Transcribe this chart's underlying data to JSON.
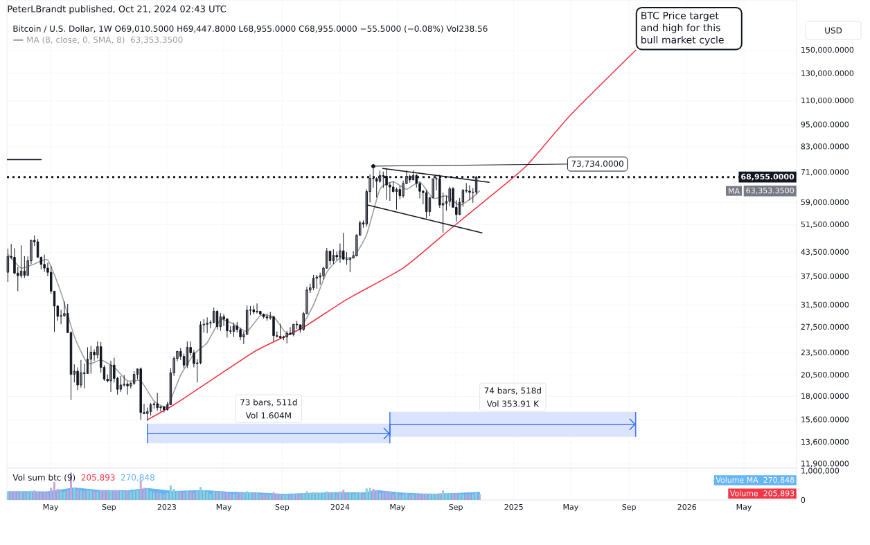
{
  "chart_data": [
    {
      "type": "candlestick",
      "title": "Bitcoin / U.S. Dollar, 1W O69,010.5000 H69,447.8000 L68,955.0000 C68,955.0000 −55.5000 (−0.08%) Vol238.56",
      "color": "#131722",
      "x": [
        "2022-01-31",
        "2022-02-07",
        "2022-02-14",
        "2022-02-21",
        "2022-02-28",
        "2022-03-07",
        "2022-03-14",
        "2022-03-21",
        "2022-03-28",
        "2022-04-04",
        "2022-04-11",
        "2022-04-18",
        "2022-04-25",
        "2022-05-02",
        "2022-05-09",
        "2022-05-16",
        "2022-05-23",
        "2022-05-30",
        "2022-06-06",
        "2022-06-13",
        "2022-06-20",
        "2022-06-27",
        "2022-07-04",
        "2022-07-11",
        "2022-07-18",
        "2022-07-25",
        "2022-08-01",
        "2022-08-08",
        "2022-08-15",
        "2022-08-22",
        "2022-08-29",
        "2022-09-05",
        "2022-09-12",
        "2022-09-19",
        "2022-09-26",
        "2022-10-03",
        "2022-10-10",
        "2022-10-17",
        "2022-10-24",
        "2022-10-31",
        "2022-11-07",
        "2022-11-14",
        "2022-11-21",
        "2022-11-28",
        "2022-12-05",
        "2022-12-12",
        "2022-12-19",
        "2022-12-26",
        "2023-01-02",
        "2023-01-09",
        "2023-01-16",
        "2023-01-23",
        "2023-01-30",
        "2023-02-06",
        "2023-02-13",
        "2023-02-20",
        "2023-02-27",
        "2023-03-06",
        "2023-03-13",
        "2023-03-20",
        "2023-03-27",
        "2023-04-03",
        "2023-04-10",
        "2023-04-17",
        "2023-04-24",
        "2023-05-01",
        "2023-05-08",
        "2023-05-15",
        "2023-05-22",
        "2023-05-29",
        "2023-06-05",
        "2023-06-12",
        "2023-06-19",
        "2023-06-26",
        "2023-07-03",
        "2023-07-10",
        "2023-07-17",
        "2023-07-24",
        "2023-07-31",
        "2023-08-07",
        "2023-08-14",
        "2023-08-21",
        "2023-08-28",
        "2023-09-04",
        "2023-09-11",
        "2023-09-18",
        "2023-09-25",
        "2023-10-02",
        "2023-10-09",
        "2023-10-16",
        "2023-10-23",
        "2023-10-30",
        "2023-11-06",
        "2023-11-13",
        "2023-11-20",
        "2023-11-27",
        "2023-12-04",
        "2023-12-11",
        "2023-12-18",
        "2023-12-25",
        "2024-01-01",
        "2024-01-08",
        "2024-01-15",
        "2024-01-22",
        "2024-01-29",
        "2024-02-05",
        "2024-02-12",
        "2024-02-19",
        "2024-02-26",
        "2024-03-04",
        "2024-03-11",
        "2024-03-18",
        "2024-03-25",
        "2024-04-01",
        "2024-04-08",
        "2024-04-15",
        "2024-04-22",
        "2024-04-29",
        "2024-05-06",
        "2024-05-13",
        "2024-05-20",
        "2024-05-27",
        "2024-06-03",
        "2024-06-10",
        "2024-06-17",
        "2024-06-24",
        "2024-07-01",
        "2024-07-08",
        "2024-07-15",
        "2024-07-22",
        "2024-07-29",
        "2024-08-05",
        "2024-08-12",
        "2024-08-19",
        "2024-08-26",
        "2024-09-02",
        "2024-09-09",
        "2024-09-16",
        "2024-09-23",
        "2024-09-30",
        "2024-10-07",
        "2024-10-14",
        "2024-10-21"
      ],
      "ohlc": [
        [
          38500,
          44500,
          36300,
          42400
        ],
        [
          42400,
          45800,
          41700,
          42200
        ],
        [
          42200,
          44600,
          38000,
          38300
        ],
        [
          38300,
          39800,
          34300,
          37700
        ],
        [
          37700,
          45400,
          37200,
          38800
        ],
        [
          38800,
          42500,
          37200,
          37800
        ],
        [
          37800,
          42400,
          37600,
          41300
        ],
        [
          41300,
          46900,
          40500,
          46800
        ],
        [
          46800,
          48200,
          45200,
          46400
        ],
        [
          46400,
          47200,
          42100,
          42200
        ],
        [
          42200,
          42400,
          39200,
          40400
        ],
        [
          40400,
          42900,
          38600,
          39500
        ],
        [
          39500,
          40800,
          37600,
          38500
        ],
        [
          38500,
          40000,
          33700,
          34300
        ],
        [
          34300,
          34300,
          26700,
          31300
        ],
        [
          31300,
          31500,
          28600,
          29400
        ],
        [
          29400,
          30600,
          28000,
          29500
        ],
        [
          29500,
          32200,
          29300,
          29900
        ],
        [
          29900,
          31700,
          26600,
          26600
        ],
        [
          26600,
          26800,
          17600,
          20600
        ],
        [
          20600,
          21900,
          19600,
          21000
        ],
        [
          21000,
          21500,
          18700,
          19300
        ],
        [
          19300,
          22500,
          19000,
          20800
        ],
        [
          20800,
          22000,
          18900,
          20700
        ],
        [
          20700,
          24300,
          20700,
          22600
        ],
        [
          22600,
          24500,
          20700,
          23600
        ],
        [
          23600,
          24000,
          22400,
          23200
        ],
        [
          23200,
          25200,
          22700,
          24400
        ],
        [
          24400,
          25100,
          20800,
          21500
        ],
        [
          21500,
          21800,
          19800,
          20000
        ],
        [
          20000,
          20600,
          19600,
          19800
        ],
        [
          19800,
          22400,
          18500,
          21800
        ],
        [
          21800,
          22800,
          19600,
          20100
        ],
        [
          20100,
          20300,
          18200,
          18800
        ],
        [
          18800,
          20400,
          18500,
          19300
        ],
        [
          19300,
          20500,
          19100,
          19400
        ],
        [
          19400,
          19700,
          18200,
          19200
        ],
        [
          19200,
          19700,
          18900,
          19500
        ],
        [
          19500,
          21000,
          19300,
          20600
        ],
        [
          20600,
          21300,
          20000,
          21300
        ],
        [
          21300,
          21500,
          15600,
          16300
        ],
        [
          16300,
          17200,
          16200,
          16200
        ],
        [
          16200,
          16800,
          15500,
          16400
        ],
        [
          16400,
          17300,
          16000,
          17100
        ],
        [
          17100,
          17400,
          16700,
          17200
        ],
        [
          17200,
          18400,
          16500,
          16800
        ],
        [
          16800,
          16900,
          16400,
          16900
        ],
        [
          16900,
          16900,
          16300,
          16600
        ],
        [
          16600,
          17400,
          16500,
          17100
        ],
        [
          17100,
          21400,
          17100,
          20800
        ],
        [
          20800,
          23000,
          20400,
          22700
        ],
        [
          22700,
          23800,
          22300,
          23700
        ],
        [
          23700,
          24200,
          22500,
          23000
        ],
        [
          23000,
          23400,
          21400,
          21800
        ],
        [
          21800,
          25200,
          21400,
          24300
        ],
        [
          24300,
          25200,
          23100,
          23500
        ],
        [
          23500,
          23900,
          21500,
          22000
        ],
        [
          22000,
          22600,
          19600,
          22100
        ],
        [
          22100,
          28500,
          21900,
          27900
        ],
        [
          27900,
          28900,
          26600,
          28000
        ],
        [
          28000,
          29200,
          26500,
          28200
        ],
        [
          28200,
          28700,
          27300,
          28300
        ],
        [
          28300,
          31000,
          28200,
          30300
        ],
        [
          30300,
          30500,
          27100,
          27600
        ],
        [
          27600,
          30000,
          26900,
          29300
        ],
        [
          29300,
          29800,
          27700,
          28900
        ],
        [
          28900,
          29100,
          25800,
          26900
        ],
        [
          26900,
          27700,
          26400,
          26800
        ],
        [
          26800,
          28300,
          25900,
          27700
        ],
        [
          27700,
          28400,
          26600,
          27100
        ],
        [
          27100,
          27400,
          25400,
          25900
        ],
        [
          25900,
          26800,
          24800,
          26300
        ],
        [
          26300,
          31400,
          26300,
          30500
        ],
        [
          30500,
          31300,
          29600,
          30600
        ],
        [
          30600,
          31400,
          29800,
          30200
        ],
        [
          30200,
          31800,
          29900,
          30300
        ],
        [
          30300,
          30400,
          29600,
          29800
        ],
        [
          29800,
          29900,
          29000,
          29300
        ],
        [
          29300,
          29900,
          28600,
          29100
        ],
        [
          29100,
          30200,
          28800,
          29300
        ],
        [
          29300,
          29500,
          25200,
          26100
        ],
        [
          26100,
          26800,
          25800,
          26000
        ],
        [
          26000,
          28100,
          25600,
          25800
        ],
        [
          25800,
          26100,
          25400,
          25900
        ],
        [
          25900,
          26900,
          24900,
          26500
        ],
        [
          26500,
          27500,
          26200,
          26300
        ],
        [
          26300,
          28000,
          26000,
          28000
        ],
        [
          28000,
          28600,
          27200,
          27900
        ],
        [
          27900,
          28000,
          26600,
          27100
        ],
        [
          27100,
          30200,
          26900,
          29900
        ],
        [
          29900,
          35200,
          29800,
          34500
        ],
        [
          34500,
          35900,
          33900,
          35000
        ],
        [
          35000,
          37900,
          34500,
          37100
        ],
        [
          37100,
          37900,
          34800,
          37400
        ],
        [
          37400,
          38400,
          35700,
          37700
        ],
        [
          37700,
          39800,
          36800,
          39500
        ],
        [
          39500,
          44700,
          39300,
          43800
        ],
        [
          43800,
          43900,
          40200,
          41300
        ],
        [
          41300,
          44300,
          40500,
          42700
        ],
        [
          42700,
          43700,
          41400,
          42300
        ],
        [
          42300,
          45900,
          40800,
          43900
        ],
        [
          43900,
          49000,
          41500,
          41700
        ],
        [
          41700,
          43600,
          40300,
          41600
        ],
        [
          41600,
          42200,
          38500,
          42000
        ],
        [
          42000,
          43800,
          41900,
          42600
        ],
        [
          42600,
          48600,
          42400,
          48300
        ],
        [
          48300,
          52800,
          48100,
          52100
        ],
        [
          52100,
          52900,
          50600,
          51700
        ],
        [
          51700,
          64000,
          50900,
          63100
        ],
        [
          63100,
          70100,
          59000,
          68400
        ],
        [
          68400,
          73734,
          64600,
          68300
        ],
        [
          68300,
          68900,
          60800,
          67200
        ],
        [
          67200,
          71800,
          66500,
          69600
        ],
        [
          69600,
          71300,
          64500,
          69300
        ],
        [
          69300,
          72800,
          60000,
          65700
        ],
        [
          65700,
          66800,
          59600,
          64900
        ],
        [
          64900,
          67200,
          62800,
          63100
        ],
        [
          63100,
          64700,
          56500,
          63900
        ],
        [
          63900,
          65500,
          60200,
          61500
        ],
        [
          61500,
          67500,
          60700,
          66300
        ],
        [
          66300,
          71900,
          66000,
          69300
        ],
        [
          69300,
          70000,
          66700,
          67800
        ],
        [
          67800,
          71900,
          67600,
          69600
        ],
        [
          69600,
          70300,
          64600,
          66300
        ],
        [
          66300,
          66900,
          60500,
          63200
        ],
        [
          63200,
          63800,
          58400,
          62700
        ],
        [
          62700,
          63800,
          53500,
          55800
        ],
        [
          55800,
          61000,
          54300,
          60800
        ],
        [
          60800,
          68400,
          60700,
          68200
        ],
        [
          68200,
          69000,
          63500,
          68300
        ],
        [
          68300,
          70000,
          57100,
          58100
        ],
        [
          58100,
          62700,
          49000,
          58700
        ],
        [
          58700,
          61500,
          56100,
          59400
        ],
        [
          59400,
          65000,
          57800,
          64200
        ],
        [
          64200,
          64900,
          57200,
          57300
        ],
        [
          57300,
          59800,
          52500,
          54800
        ],
        [
          54800,
          60700,
          54600,
          59100
        ],
        [
          59100,
          64100,
          57500,
          63600
        ],
        [
          63600,
          66500,
          62600,
          63300
        ],
        [
          63300,
          65600,
          59800,
          62800
        ],
        [
          62800,
          64500,
          58900,
          62900
        ],
        [
          62900,
          69400,
          62000,
          69010.5
        ],
        [
          69010.5,
          69447.8,
          68955,
          68955
        ]
      ],
      "series": [
        {
          "name": "MA (8, close, 0, SMA, 8)",
          "type": "line",
          "color": "#9e9e9e",
          "x": [
            "2022-01-31",
            "2022-02-28",
            "2022-03-28",
            "2022-04-25",
            "2022-05-23",
            "2022-06-20",
            "2022-07-18",
            "2022-08-15",
            "2022-09-12",
            "2022-10-10",
            "2022-11-07",
            "2022-12-05",
            "2023-01-02",
            "2023-01-30",
            "2023-02-27",
            "2023-03-27",
            "2023-04-24",
            "2023-05-22",
            "2023-06-19",
            "2023-07-17",
            "2023-08-14",
            "2023-09-11",
            "2023-10-09",
            "2023-11-06",
            "2023-12-04",
            "2024-01-01",
            "2024-01-29",
            "2024-02-26",
            "2024-03-25",
            "2024-04-22",
            "2024-05-20",
            "2024-06-17",
            "2024-07-15",
            "2024-08-12",
            "2024-09-09",
            "2024-10-07",
            "2024-10-21"
          ],
          "values": [
            43000,
            39500,
            40500,
            41500,
            34000,
            26000,
            22000,
            22500,
            21500,
            19800,
            19800,
            17500,
            16900,
            20500,
            23300,
            25000,
            28800,
            28000,
            26800,
            29500,
            29300,
            26400,
            27300,
            31500,
            38500,
            42000,
            42200,
            48500,
            64000,
            67000,
            64000,
            67000,
            60500,
            61500,
            58000,
            61000,
            63353.35
          ]
        },
        {
          "type": "line",
          "color": "#f23645",
          "x": [
            "2022-11-21",
            "2023-01-16",
            "2023-04-10",
            "2023-07-10",
            "2023-10-16",
            "2024-01-15",
            "2024-05-13",
            "2024-08-19",
            "2024-11-01",
            "2025-01-27",
            "2025-05-01",
            "2025-09-15"
          ],
          "values": [
            15600,
            17100,
            20100,
            23900,
            27500,
            32600,
            39500,
            50000,
            59600,
            73700,
            101000,
            150000
          ]
        },
        {
          "type": "line",
          "color": "#131722",
          "x": [
            "2024-03-31",
            "2024-11-10"
          ],
          "values": [
            72700,
            66800
          ]
        },
        {
          "type": "line",
          "color": "#131722",
          "x": [
            "2024-02-28",
            "2024-10-26"
          ],
          "values": [
            58100,
            49000
          ]
        },
        {
          "type": "line",
          "color": "#131722",
          "x": [
            "2022-01-29",
            "2022-04-11"
          ],
          "values": [
            76800,
            76800
          ]
        }
      ],
      "ref_lines": [
        {
          "axis": "y",
          "value": 68955,
          "label": "68,955.0000",
          "color": "#131722",
          "line_style": "dotted"
        }
      ],
      "bands": [
        {
          "axis": "x",
          "from": "2022-11-21",
          "to": "2024-04-15",
          "label": "73 bars, 511d",
          "color": "#dbe4ff"
        },
        {
          "axis": "x",
          "from": "2024-04-15",
          "to": "2025-09-15",
          "label": "74 bars, 518d",
          "color": "#dbe4ff"
        }
      ],
      "annotations": [
        "PeterLBrandt published, Oct 21, 2024 02:43 UTC",
        "63,353.3500",
        {
          "text": "73,734.0000",
          "x": "2024-03-11",
          "y": 73734
        },
        {
          "text": "BTC Price target and high for this bull market cycle",
          "x": "2025-09-15",
          "y": 150000
        },
        "USD",
        "MA",
        "63,353.3500",
        "Vol 1.604M",
        "Vol 353.91 K"
      ],
      "log": "y",
      "grid": true,
      "tick_labels": "y",
      "xlim": [
        "2022-01-29",
        "2026-08-20"
      ],
      "ylim": [
        11600,
        204000
      ],
      "xticks": [
        {
          "value": "2022-05-01",
          "label": null
        },
        {
          "value": "2022-09-01",
          "label": null
        },
        {
          "value": "2023-01-01",
          "label": null
        },
        {
          "value": "2023-05-01",
          "label": null
        },
        {
          "value": "2023-09-01",
          "label": null
        },
        {
          "value": "2024-01-01",
          "label": null
        },
        {
          "value": "2024-05-01",
          "label": null
        },
        {
          "value": "2024-09-01",
          "label": null
        },
        {
          "value": "2025-01-01",
          "label": null
        },
        {
          "value": "2025-05-01",
          "label": null
        },
        {
          "value": "2025-09-01",
          "label": null
        },
        {
          "value": "2026-01-01",
          "label": null
        },
        {
          "value": "2026-05-01",
          "label": null
        }
      ],
      "yticks": [
        {
          "value": 11900,
          "label": "11,900.0000"
        },
        {
          "value": 13600,
          "label": "13,600.0000"
        },
        {
          "value": 15600,
          "label": "15,600.0000"
        },
        {
          "value": 18000,
          "label": "18,000.0000"
        },
        {
          "value": 20500,
          "label": "20,500.0000"
        },
        {
          "value": 23500,
          "label": "23,500.0000"
        },
        {
          "value": 27500,
          "label": "27,500.0000"
        },
        {
          "value": 31500,
          "label": "31,500.0000"
        },
        {
          "value": 37500,
          "label": "37,500.0000"
        },
        {
          "value": 43500,
          "label": "43,500.0000"
        },
        {
          "value": 51500,
          "label": "51,500.0000"
        },
        {
          "value": 59000,
          "label": "59,000.0000"
        },
        {
          "value": 71000,
          "label": "71,000.0000"
        },
        {
          "value": 83000,
          "label": "83,000.0000"
        },
        {
          "value": 95000,
          "label": "95,000.0000"
        },
        {
          "value": 110000,
          "label": "110,000.0000"
        },
        {
          "value": 130000,
          "label": "130,000.0000"
        },
        {
          "value": 150000,
          "label": "150,000.0000"
        }
      ]
    },
    {
      "type": "bar",
      "title": "Vol sum btc (9)",
      "x": [
        "2022-01-31",
        "2022-02-07",
        "2022-02-14",
        "2022-02-21",
        "2022-02-28",
        "2022-03-07",
        "2022-03-14",
        "2022-03-21",
        "2022-03-28",
        "2022-04-04",
        "2022-04-11",
        "2022-04-18",
        "2022-04-25",
        "2022-05-02",
        "2022-05-09",
        "2022-05-16",
        "2022-05-23",
        "2022-05-30",
        "2022-06-06",
        "2022-06-13",
        "2022-06-20",
        "2022-06-27",
        "2022-07-04",
        "2022-07-11",
        "2022-07-18",
        "2022-07-25",
        "2022-08-01",
        "2022-08-08",
        "2022-08-15",
        "2022-08-22",
        "2022-08-29",
        "2022-09-05",
        "2022-09-12",
        "2022-09-19",
        "2022-09-26",
        "2022-10-03",
        "2022-10-10",
        "2022-10-17",
        "2022-10-24",
        "2022-10-31",
        "2022-11-07",
        "2022-11-14",
        "2022-11-21",
        "2022-11-28",
        "2022-12-05",
        "2022-12-12",
        "2022-12-19",
        "2022-12-26",
        "2023-01-02",
        "2023-01-09",
        "2023-01-16",
        "2023-01-23",
        "2023-01-30",
        "2023-02-06",
        "2023-02-13",
        "2023-02-20",
        "2023-02-27",
        "2023-03-06",
        "2023-03-13",
        "2023-03-20",
        "2023-03-27",
        "2023-04-03",
        "2023-04-10",
        "2023-04-17",
        "2023-04-24",
        "2023-05-01",
        "2023-05-08",
        "2023-05-15",
        "2023-05-22",
        "2023-05-29",
        "2023-06-05",
        "2023-06-12",
        "2023-06-19",
        "2023-06-26",
        "2023-07-03",
        "2023-07-10",
        "2023-07-17",
        "2023-07-24",
        "2023-07-31",
        "2023-08-07",
        "2023-08-14",
        "2023-08-21",
        "2023-08-28",
        "2023-09-04",
        "2023-09-11",
        "2023-09-18",
        "2023-09-25",
        "2023-10-02",
        "2023-10-09",
        "2023-10-16",
        "2023-10-23",
        "2023-10-30",
        "2023-11-06",
        "2023-11-13",
        "2023-11-20",
        "2023-11-27",
        "2023-12-04",
        "2023-12-11",
        "2023-12-18",
        "2023-12-25",
        "2024-01-01",
        "2024-01-08",
        "2024-01-15",
        "2024-01-22",
        "2024-01-29",
        "2024-02-05",
        "2024-02-12",
        "2024-02-19",
        "2024-02-26",
        "2024-03-04",
        "2024-03-11",
        "2024-03-18",
        "2024-03-25",
        "2024-04-01",
        "2024-04-08",
        "2024-04-15",
        "2024-04-22",
        "2024-04-29",
        "2024-05-06",
        "2024-05-13",
        "2024-05-20",
        "2024-05-27",
        "2024-06-03",
        "2024-06-10",
        "2024-06-17",
        "2024-06-24",
        "2024-07-01",
        "2024-07-08",
        "2024-07-15",
        "2024-07-22",
        "2024-07-29",
        "2024-08-05",
        "2024-08-12",
        "2024-08-19",
        "2024-08-26",
        "2024-09-02",
        "2024-09-09",
        "2024-09-16",
        "2024-09-23",
        "2024-09-30",
        "2024-10-07",
        "2024-10-14",
        "2024-10-21"
      ],
      "series": [
        {
          "name": "Volume",
          "type": "bar",
          "color": "#f23645",
          "values": [
            290000,
            300000,
            280000,
            310000,
            300000,
            270000,
            260000,
            320000,
            330000,
            280000,
            260000,
            270000,
            250000,
            420000,
            625000,
            380000,
            300000,
            290000,
            330000,
            950000,
            420000,
            360000,
            330000,
            300000,
            320000,
            340000,
            300000,
            290000,
            340000,
            330000,
            310000,
            330000,
            350000,
            340000,
            310000,
            300000,
            330000,
            290000,
            320000,
            340000,
            675000,
            420000,
            380000,
            300000,
            260000,
            250000,
            230000,
            200000,
            240000,
            500000,
            380000,
            300000,
            280000,
            260000,
            320000,
            290000,
            260000,
            300000,
            450000,
            330000,
            280000,
            220000,
            300000,
            290000,
            280000,
            260000,
            270000,
            220000,
            210000,
            220000,
            260000,
            250000,
            300000,
            260000,
            230000,
            240000,
            200000,
            180000,
            190000,
            180000,
            260000,
            200000,
            210000,
            170000,
            190000,
            180000,
            190000,
            200000,
            180000,
            220000,
            300000,
            260000,
            280000,
            270000,
            240000,
            230000,
            300000,
            270000,
            240000,
            220000,
            300000,
            350000,
            220000,
            240000,
            200000,
            240000,
            260000,
            200000,
            400000,
            420000,
            380000,
            330000,
            240000,
            260000,
            280000,
            260000,
            200000,
            250000,
            190000,
            200000,
            230000,
            180000,
            190000,
            190000,
            180000,
            200000,
            230000,
            230000,
            220000,
            200000,
            230000,
            330000,
            220000,
            210000,
            230000,
            220000,
            210000,
            200000,
            190000,
            200000,
            200000,
            240000,
            205893
          ],
          "colors": [
            "#8fcfd6",
            "#c9a6d4",
            "#c9a6d4",
            "#c9a6d4",
            "#8fcfd6",
            "#c9a6d4",
            "#8fcfd6",
            "#8fcfd6",
            "#c9a6d4",
            "#c9a6d4",
            "#c9a6d4",
            "#c9a6d4",
            "#c9a6d4",
            "#c9a6d4",
            "#c9a6d4",
            "#c9a6d4",
            "#8fcfd6",
            "#8fcfd6",
            "#c9a6d4",
            "#c9a6d4",
            "#8fcfd6",
            "#c9a6d4",
            "#8fcfd6",
            "#c9a6d4",
            "#8fcfd6",
            "#8fcfd6",
            "#c9a6d4",
            "#8fcfd6",
            "#c9a6d4",
            "#c9a6d4",
            "#c9a6d4",
            "#8fcfd6",
            "#c9a6d4",
            "#c9a6d4",
            "#8fcfd6",
            "#8fcfd6",
            "#c9a6d4",
            "#8fcfd6",
            "#8fcfd6",
            "#8fcfd6",
            "#c9a6d4",
            "#c9a6d4",
            "#8fcfd6",
            "#8fcfd6",
            "#8fcfd6",
            "#c9a6d4",
            "#8fcfd6",
            "#c9a6d4",
            "#8fcfd6",
            "#8fcfd6",
            "#8fcfd6",
            "#8fcfd6",
            "#c9a6d4",
            "#c9a6d4",
            "#8fcfd6",
            "#c9a6d4",
            "#c9a6d4",
            "#8fcfd6",
            "#8fcfd6",
            "#8fcfd6",
            "#8fcfd6",
            "#8fcfd6",
            "#8fcfd6",
            "#c9a6d4",
            "#8fcfd6",
            "#c9a6d4",
            "#c9a6d4",
            "#c9a6d4",
            "#8fcfd6",
            "#c9a6d4",
            "#c9a6d4",
            "#8fcfd6",
            "#8fcfd6",
            "#8fcfd6",
            "#c9a6d4",
            "#8fcfd6",
            "#c9a6d4",
            "#c9a6d4",
            "#c9a6d4",
            "#8fcfd6",
            "#c9a6d4",
            "#c9a6d4",
            "#c9a6d4",
            "#8fcfd6",
            "#8fcfd6",
            "#c9a6d4",
            "#8fcfd6",
            "#c9a6d4",
            "#c9a6d4",
            "#8fcfd6",
            "#8fcfd6",
            "#8fcfd6",
            "#8fcfd6",
            "#8fcfd6",
            "#8fcfd6",
            "#8fcfd6",
            "#8fcfd6",
            "#c9a6d4",
            "#8fcfd6",
            "#c9a6d4",
            "#8fcfd6",
            "#c9a6d4",
            "#c9a6d4",
            "#8fcfd6",
            "#8fcfd6",
            "#8fcfd6",
            "#8fcfd6",
            "#c9a6d4",
            "#8fcfd6",
            "#8fcfd6",
            "#c9a6d4",
            "#c9a6d4",
            "#8fcfd6",
            "#c9a6d4",
            "#c9a6d4",
            "#c9a6d4",
            "#c9a6d4",
            "#8fcfd6",
            "#c9a6d4",
            "#8fcfd6",
            "#8fcfd6",
            "#c9a6d4",
            "#8fcfd6",
            "#c9a6d4",
            "#c9a6d4",
            "#c9a6d4",
            "#c9a6d4",
            "#8fcfd6",
            "#8fcfd6",
            "#8fcfd6",
            "#c9a6d4",
            "#8fcfd6",
            "#8fcfd6",
            "#8fcfd6",
            "#c9a6d4",
            "#c9a6d4",
            "#8fcfd6",
            "#8fcfd6",
            "#c9a6d4",
            "#c9a6d4",
            "#8fcfd6",
            "#8fcfd6",
            "#c9a6d4"
          ]
        },
        {
          "name": "Volume MA",
          "type": "area",
          "color": "#64b5f6",
          "x": [
            "2022-01-31",
            "2022-04-25",
            "2022-06-20",
            "2022-08-15",
            "2022-10-10",
            "2022-11-21",
            "2023-01-16",
            "2023-03-20",
            "2023-05-15",
            "2023-07-10",
            "2023-09-04",
            "2023-10-30",
            "2023-12-25",
            "2024-02-19",
            "2024-03-18",
            "2024-05-13",
            "2024-07-08",
            "2024-09-02",
            "2024-10-21"
          ],
          "values": [
            290000,
            285000,
            420000,
            330000,
            320000,
            400000,
            300000,
            330000,
            270000,
            250000,
            200000,
            230000,
            260000,
            250000,
            330000,
            240000,
            200000,
            230000,
            270848
          ]
        }
      ],
      "annotations": [
        "205,893",
        "270,848",
        "205,893",
        "270,848"
      ],
      "grid": true,
      "xlim": [
        "2022-01-29",
        "2026-08-20"
      ],
      "ylim": [
        0,
        1100000
      ],
      "xticks": [
        {
          "value": "2022-05-01",
          "label": "May"
        },
        {
          "value": "2022-09-01",
          "label": "Sep"
        },
        {
          "value": "2023-01-01",
          "label": "2023"
        },
        {
          "value": "2023-05-01",
          "label": "May"
        },
        {
          "value": "2023-09-01",
          "label": "Sep"
        },
        {
          "value": "2024-01-01",
          "label": "2024"
        },
        {
          "value": "2024-05-01",
          "label": "May"
        },
        {
          "value": "2024-09-01",
          "label": "Sep"
        },
        {
          "value": "2025-01-01",
          "label": "2025"
        },
        {
          "value": "2025-05-01",
          "label": "May"
        },
        {
          "value": "2025-09-01",
          "label": "Sep"
        },
        {
          "value": "2026-01-01",
          "label": "2026"
        },
        {
          "value": "2026-05-01",
          "label": "May"
        }
      ],
      "yticks": [
        0,
        {
          "value": 1000000,
          "label": "1,000,000"
        }
      ]
    }
  ]
}
